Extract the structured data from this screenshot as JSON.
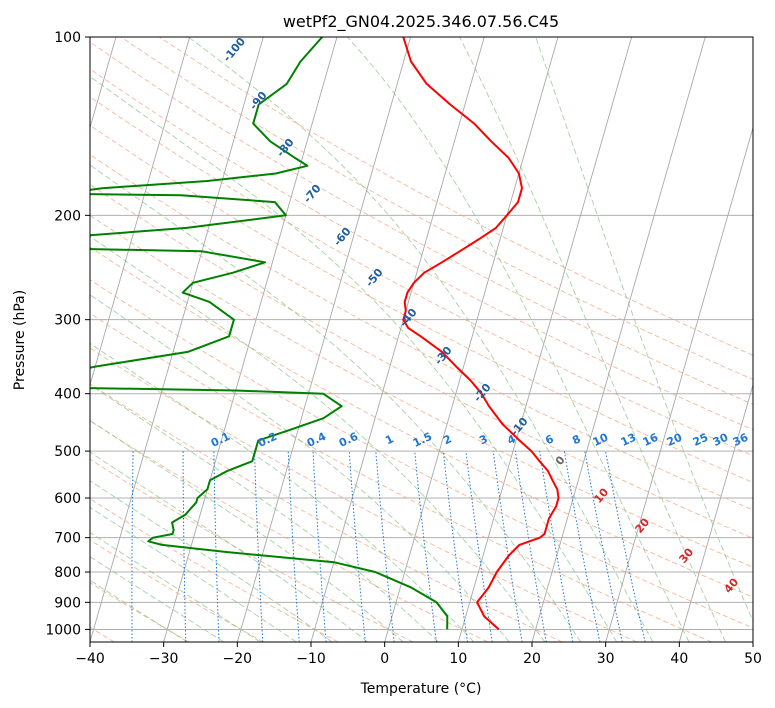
{
  "chart_data": {
    "type": "line",
    "title": "wetPf2_GN04.2025.346.07.56.C45",
    "xlabel": "Temperature (°C)",
    "ylabel": "Pressure (hPa)",
    "xlim": [
      -40,
      50
    ],
    "ylim": [
      1050,
      100
    ],
    "y_scale": "log",
    "skew": "skew-T",
    "grid": true,
    "x_ticks": [
      "−40",
      "−30",
      "−20",
      "−10",
      "0",
      "10",
      "20",
      "30",
      "40",
      "50"
    ],
    "y_ticks": [
      "1000",
      "900",
      "800",
      "700",
      "600",
      "500",
      "400",
      "300",
      "200",
      "100"
    ],
    "series": [
      {
        "color": "#ff0000",
        "p": [
          1000,
          950,
          900,
          850,
          800,
          750,
          720,
          700,
          690,
          670,
          650,
          620,
          600,
          580,
          560,
          540,
          520,
          500,
          480,
          450,
          420,
          400,
          380,
          360,
          340,
          320,
          310,
          300,
          290,
          280,
          270,
          260,
          250,
          240,
          230,
          220,
          210,
          200,
          190,
          180,
          170,
          160,
          150,
          140,
          130,
          120,
          110,
          100
        ],
        "t": [
          15,
          12.5,
          11,
          12,
          12.5,
          13.5,
          14.5,
          17,
          17.5,
          17.5,
          17.5,
          18,
          18,
          17.5,
          16.5,
          15.5,
          14,
          12.5,
          10.5,
          7.5,
          5,
          3.5,
          1.5,
          -1,
          -3.5,
          -7,
          -9,
          -10,
          -10,
          -10.5,
          -10.5,
          -10,
          -9,
          -7,
          -5,
          -3,
          -1,
          0,
          1,
          1,
          0,
          -2,
          -5,
          -8,
          -12,
          -16,
          -19,
          -21
        ]
      },
      {
        "color": "#008000",
        "p": [
          1000,
          950,
          900,
          850,
          800,
          770,
          740,
          720,
          710,
          700,
          690,
          680,
          660,
          640,
          610,
          600,
          580,
          560,
          540,
          520,
          500,
          490,
          480,
          460,
          440,
          420,
          400,
          395,
          390,
          380,
          360,
          340,
          320,
          300,
          280,
          270,
          260,
          250,
          240,
          230,
          228,
          225,
          224,
          222,
          210,
          200,
          190,
          185,
          184,
          183,
          180,
          175,
          170,
          165,
          160,
          150,
          140,
          130,
          120,
          110,
          100
        ],
        "t": [
          8,
          7.5,
          5.5,
          1.5,
          -4,
          -10,
          -25,
          -34,
          -36,
          -35.5,
          -33,
          -33,
          -33.5,
          -32,
          -31,
          -31,
          -30,
          -30,
          -28,
          -25,
          -25,
          -25,
          -25,
          -21,
          -17,
          -15,
          -18,
          -30,
          -57,
          -58,
          -50,
          -38,
          -33,
          -33,
          -37,
          -41,
          -40,
          -35,
          -31,
          -40,
          -55,
          -67,
          -67,
          -68,
          -43,
          -30,
          -32,
          -45,
          -60,
          -60,
          -56,
          -42,
          -33,
          -29,
          -31,
          -35,
          -38,
          -38,
          -35,
          -34,
          -32
        ]
      }
    ],
    "dry_adiabats_C": [
      -100,
      -90,
      -80,
      -70,
      -60,
      -50,
      -40,
      -30,
      -20,
      -10,
      0,
      10,
      20,
      30,
      40,
      50,
      60,
      70,
      80,
      90,
      100,
      110,
      120,
      130,
      140,
      150
    ],
    "dry_adiabat_labels": [
      "-100",
      "-90",
      "-80",
      "-70",
      "-60",
      "-50",
      "-40",
      "-30",
      "-20",
      "-10"
    ],
    "moist_adiabat_labels": [
      "0",
      "10",
      "20",
      "30",
      "40"
    ],
    "mixing_ratios": [
      0.1,
      0.2,
      0.4,
      0.6,
      1,
      1.5,
      2,
      3,
      4,
      6,
      8,
      10,
      13,
      16,
      20,
      25,
      30,
      36
    ],
    "mixing_ratio_labels": [
      "0.1",
      "0.2",
      "0.4",
      "0.6",
      "1",
      "1.5",
      "2",
      "3",
      "4",
      "6",
      "8",
      "10",
      "13",
      "16",
      "20",
      "25",
      "30",
      "36"
    ],
    "colors": {
      "temperature": "#ff0000",
      "dewpoint": "#008000",
      "isotherm": "#a9a9a9",
      "dry_adiabat": "#f4a582",
      "moist_adiabat": "#7fbf7f",
      "mixing_ratio": "#1f77d4",
      "dry_label": "#1f5fa0",
      "moist_label": "#d62728"
    }
  }
}
